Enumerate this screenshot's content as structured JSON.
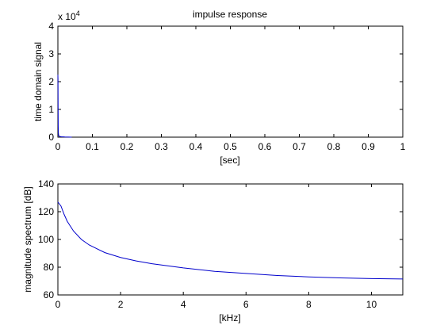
{
  "colors": {
    "background": "#ffffff",
    "axes": "#000000",
    "line": "#0000cc"
  },
  "chart_data": [
    {
      "type": "line",
      "title": "impulse response",
      "xlabel": "[sec]",
      "ylabel": "time domain signal",
      "exponent_label": "x 10",
      "exponent_power": "4",
      "xlim": [
        0,
        1
      ],
      "ylim": [
        0,
        40000
      ],
      "xticks": [
        0,
        0.1,
        0.2,
        0.3,
        0.4,
        0.5,
        0.6,
        0.7,
        0.8,
        0.9,
        1
      ],
      "xtick_labels": [
        "0",
        "0.1",
        "0.2",
        "0.3",
        "0.4",
        "0.5",
        "0.6",
        "0.7",
        "0.8",
        "0.9",
        "1"
      ],
      "yticks": [
        0,
        10000,
        20000,
        30000,
        40000
      ],
      "ytick_labels": [
        "0",
        "1",
        "2",
        "3",
        "4"
      ],
      "grid": false,
      "series": [
        {
          "x": [
            0,
            0.0003,
            0.0006,
            0.001,
            0.0015,
            0.002,
            0.003,
            0.005,
            0.01,
            0.02,
            0.04
          ],
          "y": [
            22500,
            21000,
            12000,
            4000,
            1500,
            800,
            400,
            250,
            150,
            80,
            0
          ]
        }
      ]
    },
    {
      "type": "line",
      "title": "",
      "xlabel": "[kHz]",
      "ylabel": "magnitude spectrum [dB]",
      "xlim": [
        0,
        11
      ],
      "ylim": [
        60,
        140
      ],
      "xticks": [
        0,
        2,
        4,
        6,
        8,
        10
      ],
      "xtick_labels": [
        "0",
        "2",
        "4",
        "6",
        "8",
        "10"
      ],
      "yticks": [
        60,
        80,
        100,
        120,
        140
      ],
      "ytick_labels": [
        "60",
        "80",
        "100",
        "120",
        "140"
      ],
      "grid": false,
      "series": [
        {
          "x": [
            0,
            0.1,
            0.2,
            0.3,
            0.5,
            0.75,
            1,
            1.5,
            2,
            2.5,
            3,
            3.5,
            4,
            5,
            6,
            7,
            8,
            9,
            10,
            11
          ],
          "y": [
            127,
            124,
            118,
            113,
            106,
            100,
            96,
            90.5,
            87,
            84.5,
            82.5,
            81,
            79.5,
            77,
            75.5,
            74,
            73,
            72.3,
            71.8,
            71.5
          ]
        }
      ]
    }
  ]
}
